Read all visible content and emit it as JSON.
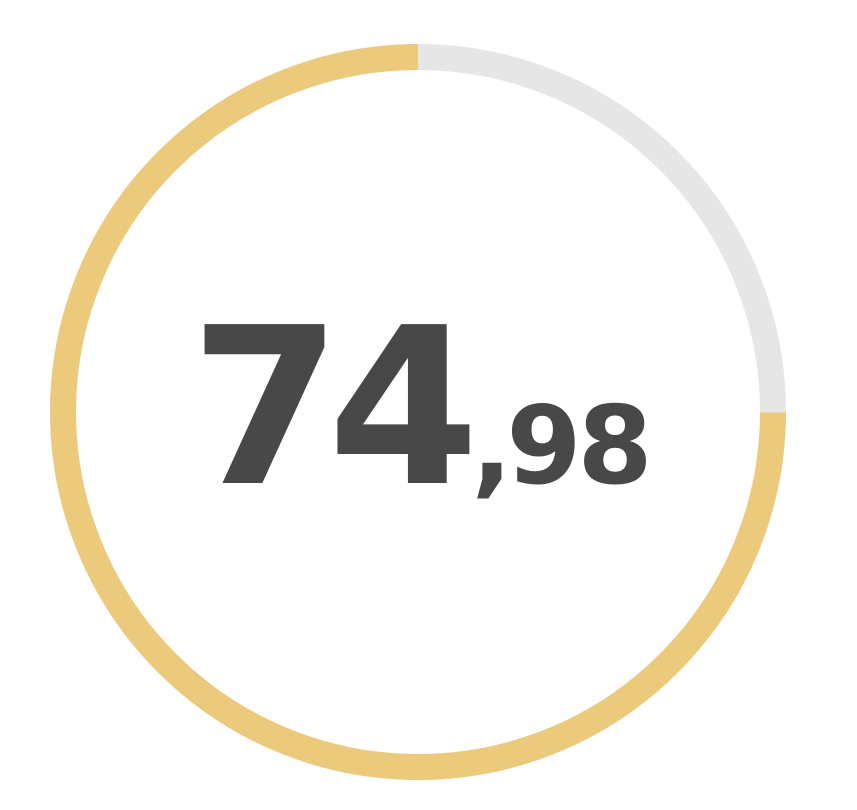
{
  "gauge": {
    "value_fraction": 0.7498,
    "colors": {
      "progress": "#ebca7c",
      "track": "#e6e6e6",
      "text": "#484848"
    }
  },
  "score": {
    "integer": "74",
    "separator": ",",
    "decimal": "98"
  }
}
